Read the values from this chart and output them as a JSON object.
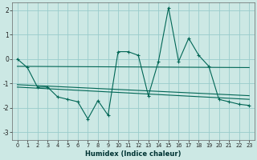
{
  "xlabel": "Humidex (Indice chaleur)",
  "ylabel": "",
  "background_color": "#cce8e4",
  "grid_color": "#99cccc",
  "line_color": "#006655",
  "xlim": [
    -0.5,
    23.5
  ],
  "ylim": [
    -3.3,
    2.3
  ],
  "xticks": [
    0,
    1,
    2,
    3,
    4,
    5,
    6,
    7,
    8,
    9,
    10,
    11,
    12,
    13,
    14,
    15,
    16,
    17,
    18,
    19,
    20,
    21,
    22,
    23
  ],
  "yticks": [
    -3,
    -2,
    -1,
    0,
    1,
    2
  ],
  "series": {
    "main": {
      "x": [
        0,
        1,
        2,
        3,
        4,
        5,
        6,
        7,
        8,
        9,
        10,
        11,
        12,
        13,
        14,
        15,
        16,
        17,
        18,
        19,
        20,
        21,
        22,
        23
      ],
      "y": [
        0.0,
        -0.35,
        -1.15,
        -1.15,
        -1.55,
        -1.65,
        -1.75,
        -2.45,
        -1.7,
        -2.3,
        0.3,
        0.3,
        0.15,
        -1.5,
        -0.1,
        2.1,
        -0.1,
        0.85,
        0.15,
        -0.3,
        -1.65,
        -1.75,
        -1.85,
        -1.9
      ]
    },
    "trend1": {
      "x": [
        0,
        23
      ],
      "y": [
        -0.3,
        -0.35
      ]
    },
    "trend2": {
      "x": [
        0,
        23
      ],
      "y": [
        -1.05,
        -1.5
      ]
    },
    "trend3": {
      "x": [
        0,
        23
      ],
      "y": [
        -1.15,
        -1.65
      ]
    }
  }
}
